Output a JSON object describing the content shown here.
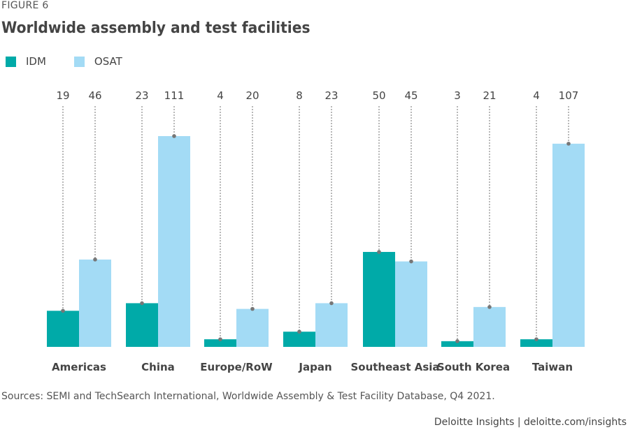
{
  "figure_label": "FIGURE 6",
  "title": "Worldwide assembly and test facilities",
  "sources": "Sources: SEMI and TechSearch International, Worldwide Assembly & Test Facility Database, Q4 2021.",
  "credit": "Deloitte Insights | deloitte.com/insights",
  "colors": {
    "IDM": "#00aaa8",
    "OSAT": "#a3dbf5",
    "leader": "#888888",
    "dot": "#777777"
  },
  "chart_data": {
    "type": "bar",
    "categories": [
      "Americas",
      "China",
      "Europe/RoW",
      "Japan",
      "Southeast Asia",
      "South Korea",
      "Taiwan"
    ],
    "series": [
      {
        "name": "IDM",
        "values": [
          19,
          23,
          4,
          8,
          50,
          3,
          4
        ]
      },
      {
        "name": "OSAT",
        "values": [
          46,
          111,
          20,
          23,
          45,
          21,
          107
        ]
      }
    ],
    "title": "Worldwide assembly and test facilities",
    "xlabel": "",
    "ylabel": "",
    "ylim": [
      0,
      111
    ],
    "grid": false,
    "legend": "top-left"
  }
}
